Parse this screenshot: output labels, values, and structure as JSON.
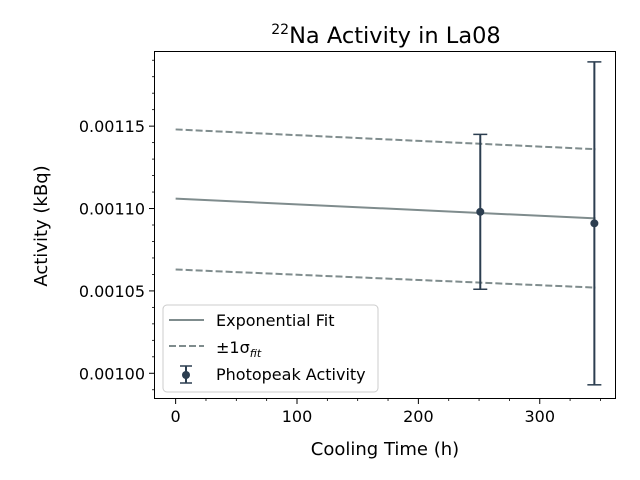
{
  "chart_data": {
    "type": "line",
    "title": {
      "superscript": "22",
      "text": "Na Activity in La08"
    },
    "xlabel": "Cooling Time (h)",
    "ylabel": "Activity (kBq)",
    "xlim": [
      -17,
      362
    ],
    "ylim": [
      0.000985,
      0.001195
    ],
    "xticks": [
      0,
      100,
      200,
      300
    ],
    "xtick_labels": [
      "0",
      "100",
      "200",
      "300"
    ],
    "yticks": [
      0.001,
      0.00105,
      0.0011,
      0.00115
    ],
    "ytick_labels": [
      "0.00100",
      "0.00105",
      "0.00110",
      "0.00115"
    ],
    "grid": false,
    "legend_position": "lower-left",
    "legend": [
      {
        "key": "fit",
        "label": "Exponential Fit",
        "style": "solid"
      },
      {
        "key": "sigma",
        "label": "±1σ",
        "subscript": "fit",
        "style": "dashed"
      },
      {
        "key": "data",
        "label": "Photopeak Activity",
        "style": "errorbar"
      }
    ],
    "series": [
      {
        "name": "Exponential Fit",
        "kind": "line",
        "color": "#7f8c8d",
        "x": [
          0,
          346
        ],
        "y": [
          0.001106,
          0.001094
        ]
      },
      {
        "name": "±1σfit upper",
        "kind": "dashed",
        "color": "#7f8c8d",
        "x": [
          0,
          346
        ],
        "y": [
          0.001148,
          0.001136
        ]
      },
      {
        "name": "±1σfit lower",
        "kind": "dashed",
        "color": "#7f8c8d",
        "x": [
          0,
          346
        ],
        "y": [
          0.001063,
          0.001052
        ]
      },
      {
        "name": "Photopeak Activity",
        "kind": "errorbar",
        "color": "#2c3e50",
        "points": [
          {
            "x": 251,
            "y": 0.001098,
            "err_low": 4.7e-05,
            "err_high": 4.7e-05
          },
          {
            "x": 345,
            "y": 0.001091,
            "err_low": 9.8e-05,
            "err_high": 9.8e-05
          }
        ]
      }
    ]
  }
}
